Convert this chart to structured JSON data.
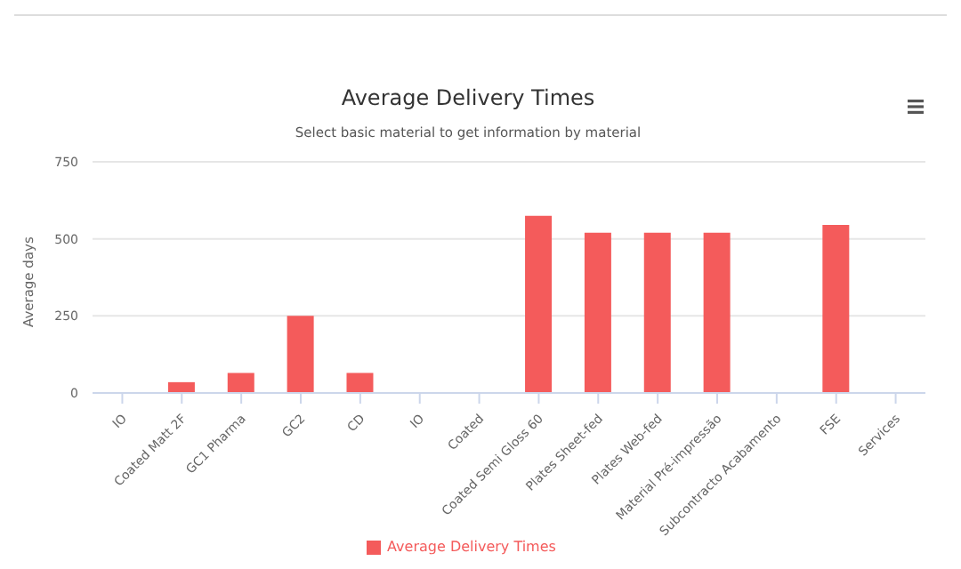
{
  "chart_data": {
    "type": "bar",
    "title": "Average Delivery Times",
    "subtitle": "Select basic material to get information by material",
    "ylabel": "Average days",
    "categories": [
      "IO",
      "Coated Matt 2F",
      "GC1 Pharma",
      "GC2",
      "CD",
      "IO",
      "Coated",
      "Coated Semi Gloss 60",
      "Plates Sheet-fed",
      "Plates Web-fed",
      "Material Pré-impressão",
      "Subcontracto Acabamento",
      "FSE",
      "Services"
    ],
    "series": [
      {
        "name": "Average Delivery Times",
        "color": "#f45b5b",
        "values": [
          0,
          35,
          65,
          250,
          65,
          0,
          0,
          575,
          520,
          520,
          520,
          0,
          545,
          0
        ]
      }
    ],
    "ylim": [
      0,
      750
    ],
    "yticks": [
      0,
      250,
      500,
      750
    ],
    "grid": "y",
    "legend": "bottom"
  }
}
